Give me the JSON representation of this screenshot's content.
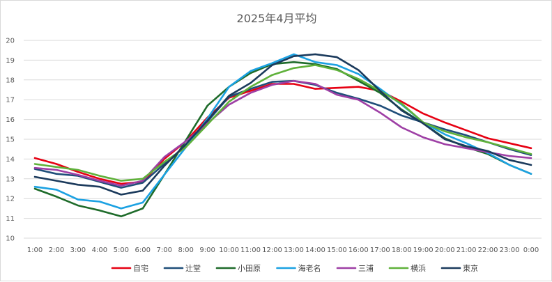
{
  "chart_data": {
    "type": "line",
    "title": "2025年4月平均",
    "xlabel": "",
    "ylabel": "",
    "ylim": [
      10,
      20
    ],
    "yticks": [
      10,
      11,
      12,
      13,
      14,
      15,
      16,
      17,
      18,
      19,
      20
    ],
    "grid": true,
    "legend_position": "bottom",
    "x": [
      "1:00",
      "2:00",
      "3:00",
      "4:00",
      "5:00",
      "6:00",
      "7:00",
      "8:00",
      "9:00",
      "10:00",
      "11:00",
      "12:00",
      "13:00",
      "14:00",
      "15:00",
      "16:00",
      "17:00",
      "18:00",
      "19:00",
      "20:00",
      "21:00",
      "22:00",
      "23:00",
      "0:00"
    ],
    "series": [
      {
        "name": "自宅",
        "color": "#e60012",
        "values": [
          14.05,
          13.75,
          13.35,
          13.0,
          12.75,
          12.85,
          14.0,
          14.9,
          16.1,
          17.1,
          17.45,
          17.8,
          17.8,
          17.55,
          17.6,
          17.65,
          17.45,
          16.9,
          16.3,
          15.85,
          15.45,
          15.05,
          14.8,
          14.55
        ]
      },
      {
        "name": "辻堂",
        "color": "#1f4e79",
        "values": [
          13.5,
          13.25,
          13.15,
          12.85,
          12.55,
          12.8,
          13.75,
          14.65,
          15.9,
          17.15,
          17.55,
          17.9,
          17.95,
          17.75,
          17.35,
          17.05,
          16.7,
          16.2,
          15.85,
          15.5,
          15.2,
          14.85,
          14.5,
          14.2
        ]
      },
      {
        "name": "小田原",
        "color": "#1e6b2a",
        "values": [
          12.5,
          12.1,
          11.65,
          11.4,
          11.1,
          11.5,
          13.2,
          14.95,
          16.7,
          17.65,
          18.35,
          18.8,
          18.9,
          18.8,
          18.55,
          17.95,
          17.35,
          16.5,
          15.8,
          15.05,
          14.6,
          14.25,
          13.7,
          13.25
        ]
      },
      {
        "name": "海老名",
        "color": "#1ba1e2",
        "values": [
          12.6,
          12.45,
          11.95,
          11.85,
          11.5,
          11.8,
          13.2,
          14.6,
          16.05,
          17.65,
          18.45,
          18.85,
          19.3,
          18.9,
          18.75,
          18.3,
          17.55,
          16.75,
          15.85,
          15.25,
          14.8,
          14.3,
          13.7,
          13.25
        ]
      },
      {
        "name": "三浦",
        "color": "#9e3fa5",
        "values": [
          13.55,
          13.45,
          13.2,
          12.9,
          12.65,
          12.9,
          14.1,
          14.9,
          15.8,
          16.75,
          17.35,
          17.75,
          17.95,
          17.8,
          17.25,
          17.0,
          16.35,
          15.6,
          15.1,
          14.75,
          14.55,
          14.35,
          14.15,
          14.05
        ]
      },
      {
        "name": "横浜",
        "color": "#5fb13a",
        "values": [
          13.75,
          13.6,
          13.45,
          13.15,
          12.9,
          13.0,
          13.85,
          14.6,
          15.75,
          16.9,
          17.65,
          18.25,
          18.6,
          18.75,
          18.5,
          18.05,
          17.45,
          16.8,
          15.85,
          15.4,
          15.1,
          14.85,
          14.55,
          14.25
        ]
      },
      {
        "name": "東京",
        "color": "#1b3a5c",
        "values": [
          13.1,
          12.9,
          12.7,
          12.6,
          12.2,
          12.4,
          13.65,
          14.75,
          15.95,
          17.2,
          17.85,
          18.75,
          19.2,
          19.3,
          19.15,
          18.5,
          17.45,
          16.45,
          15.8,
          15.0,
          14.65,
          14.4,
          13.95,
          13.7
        ]
      }
    ]
  }
}
